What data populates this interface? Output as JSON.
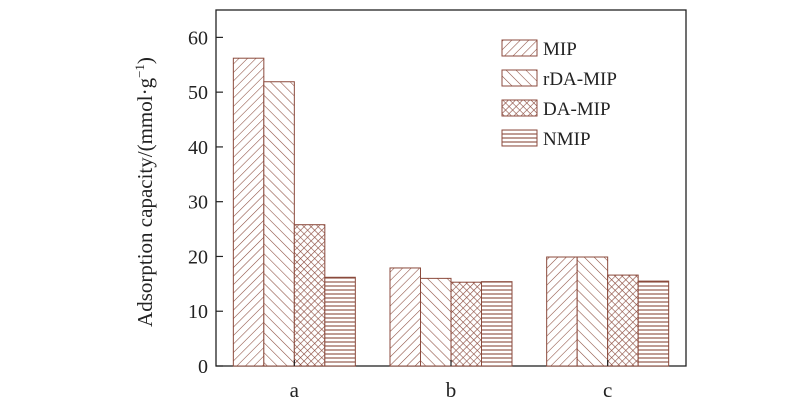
{
  "chart_data": {
    "type": "bar",
    "categories": [
      "a",
      "b",
      "c"
    ],
    "series": [
      {
        "name": "MIP",
        "values": [
          56.2,
          17.9,
          19.9
        ],
        "pattern": "diag-fwd-dense"
      },
      {
        "name": "rDA-MIP",
        "values": [
          51.9,
          16.0,
          19.9
        ],
        "pattern": "diag-back"
      },
      {
        "name": "DA-MIP",
        "values": [
          25.8,
          15.3,
          16.6
        ],
        "pattern": "crosshatch"
      },
      {
        "name": "NMIP",
        "values": [
          16.2,
          15.4,
          15.5
        ],
        "pattern": "horizontal"
      }
    ],
    "ylabel_main": "Adsorption capacity/(mmol·g",
    "ylabel_sup": "−1",
    "ylabel_end": ")",
    "yticks": [
      0,
      10,
      20,
      30,
      40,
      50,
      60
    ],
    "ylim": [
      0,
      65
    ],
    "xlabel": "",
    "grid": false,
    "legend_position": "top-right",
    "colors": {
      "bar_edge": "#8b4a3c",
      "pattern_line": "#8b4a3c",
      "bar_fill": "#ffffff",
      "axis": "#222222"
    }
  }
}
